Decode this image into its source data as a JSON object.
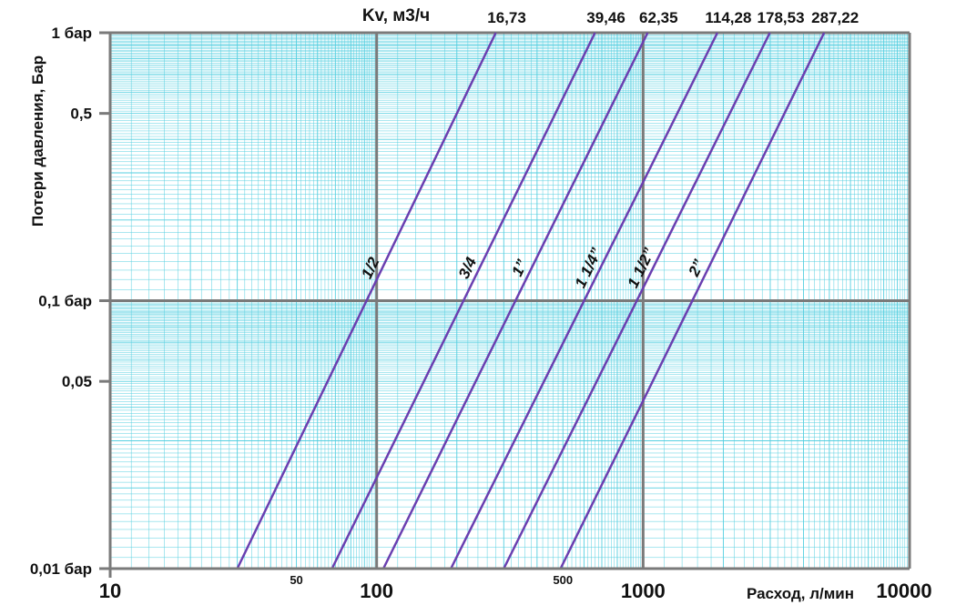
{
  "chart_data": {
    "type": "line",
    "title": "Kv, м3/ч",
    "xlabel": "Расход, л/мин",
    "ylabel": "Потери давления, Бар",
    "x_scale": "log",
    "y_scale": "log",
    "xlim": [
      10,
      10000
    ],
    "ylim": [
      0.01,
      1
    ],
    "grid": true,
    "x_ticks": [
      {
        "value": 10,
        "label": "10",
        "major": true
      },
      {
        "value": 50,
        "label": "50",
        "major": false
      },
      {
        "value": 100,
        "label": "100",
        "major": true
      },
      {
        "value": 500,
        "label": "500",
        "major": false
      },
      {
        "value": 1000,
        "label": "1000",
        "major": true
      },
      {
        "value": 10000,
        "label": "10000",
        "major": true
      }
    ],
    "y_ticks": [
      {
        "value": 1,
        "label": "1 бар"
      },
      {
        "value": 0.5,
        "label": "0,5"
      },
      {
        "value": 0.1,
        "label": "0,1 бар"
      },
      {
        "value": 0.05,
        "label": "0,05"
      },
      {
        "value": 0.01,
        "label": "0,01 бар"
      }
    ],
    "series": [
      {
        "name": "1/2",
        "kv": "16,73",
        "points": [
          [
            30,
            0.01
          ],
          [
            280,
            1
          ]
        ]
      },
      {
        "name": "3/4",
        "kv": "39,46",
        "points": [
          [
            68,
            0.01
          ],
          [
            660,
            1
          ]
        ]
      },
      {
        "name": "1”",
        "kv": "62,35",
        "points": [
          [
            106,
            0.01
          ],
          [
            1040,
            1
          ]
        ]
      },
      {
        "name": "1 1/4”",
        "kv": "114,28",
        "points": [
          [
            190,
            0.01
          ],
          [
            1900,
            1
          ]
        ]
      },
      {
        "name": "1 1/2”",
        "kv": "178,53",
        "points": [
          [
            300,
            0.01
          ],
          [
            2990,
            1
          ]
        ]
      },
      {
        "name": "2”",
        "kv": "287,22",
        "points": [
          [
            490,
            0.01
          ],
          [
            4780,
            1
          ]
        ]
      }
    ],
    "colors": {
      "minor_grid": "#55cfe0",
      "major_grid": "#7a7a7a",
      "axis": "#7a7a7a",
      "series": "#6a3fb0",
      "background": "#ffffff"
    }
  }
}
